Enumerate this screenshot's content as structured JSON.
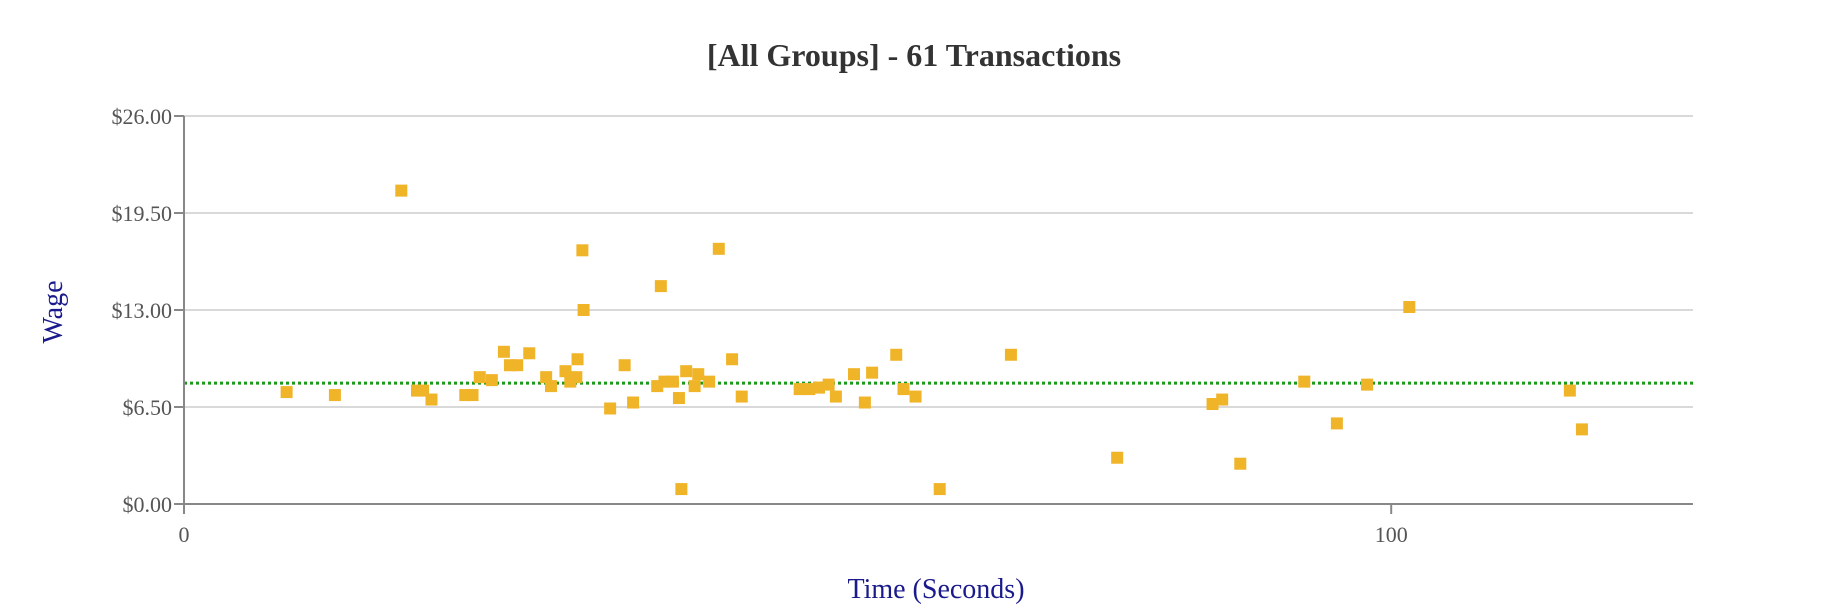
{
  "chart_data": {
    "type": "scatter",
    "title": "[All Groups] - 61 Transactions",
    "xlabel": "Time (Seconds)",
    "ylabel": "Wage",
    "xlim": [
      0,
      125
    ],
    "ylim": [
      0,
      26
    ],
    "x_ticks": [
      0,
      100
    ],
    "x_tick_labels": [
      "0",
      "100"
    ],
    "y_ticks": [
      0,
      6.5,
      13,
      19.5,
      26
    ],
    "y_tick_labels": [
      "$0.00",
      "$6.50",
      "$13.00",
      "$19.50",
      "$26.00"
    ],
    "grid": true,
    "reference_line": {
      "y": 8.1,
      "color": "#1a9a1a",
      "style": "dotted"
    },
    "colors": {
      "marker": "#f0b429",
      "axis_label": "#1a1a8c",
      "grid": "#d9d9d9"
    },
    "points": [
      {
        "x": 8.5,
        "y": 7.5
      },
      {
        "x": 12.5,
        "y": 7.3
      },
      {
        "x": 18.0,
        "y": 21.0
      },
      {
        "x": 19.3,
        "y": 7.6
      },
      {
        "x": 19.8,
        "y": 7.6
      },
      {
        "x": 20.5,
        "y": 7.0
      },
      {
        "x": 23.3,
        "y": 7.3
      },
      {
        "x": 23.9,
        "y": 7.3
      },
      {
        "x": 24.5,
        "y": 8.5
      },
      {
        "x": 25.5,
        "y": 8.3
      },
      {
        "x": 26.5,
        "y": 10.2
      },
      {
        "x": 27.0,
        "y": 9.3
      },
      {
        "x": 27.6,
        "y": 9.3
      },
      {
        "x": 28.6,
        "y": 10.1
      },
      {
        "x": 30.0,
        "y": 8.5
      },
      {
        "x": 30.4,
        "y": 7.9
      },
      {
        "x": 31.6,
        "y": 8.9
      },
      {
        "x": 32.0,
        "y": 8.2
      },
      {
        "x": 32.5,
        "y": 8.5
      },
      {
        "x": 32.6,
        "y": 9.7
      },
      {
        "x": 33.0,
        "y": 17.0
      },
      {
        "x": 33.1,
        "y": 13.0
      },
      {
        "x": 35.3,
        "y": 6.4
      },
      {
        "x": 36.5,
        "y": 9.3
      },
      {
        "x": 37.2,
        "y": 6.8
      },
      {
        "x": 39.2,
        "y": 7.9
      },
      {
        "x": 39.5,
        "y": 14.6
      },
      {
        "x": 39.8,
        "y": 8.2
      },
      {
        "x": 40.5,
        "y": 8.2
      },
      {
        "x": 41.0,
        "y": 7.1
      },
      {
        "x": 41.2,
        "y": 1.0
      },
      {
        "x": 41.6,
        "y": 8.9
      },
      {
        "x": 42.3,
        "y": 7.9
      },
      {
        "x": 42.6,
        "y": 8.7
      },
      {
        "x": 43.5,
        "y": 8.2
      },
      {
        "x": 44.3,
        "y": 17.1
      },
      {
        "x": 45.4,
        "y": 9.7
      },
      {
        "x": 46.2,
        "y": 7.2
      },
      {
        "x": 51.0,
        "y": 7.7
      },
      {
        "x": 51.8,
        "y": 7.7
      },
      {
        "x": 52.6,
        "y": 7.8
      },
      {
        "x": 53.4,
        "y": 8.0
      },
      {
        "x": 54.0,
        "y": 7.2
      },
      {
        "x": 55.5,
        "y": 8.7
      },
      {
        "x": 56.4,
        "y": 6.8
      },
      {
        "x": 57.0,
        "y": 8.8
      },
      {
        "x": 59.0,
        "y": 10.0
      },
      {
        "x": 59.6,
        "y": 7.7
      },
      {
        "x": 60.6,
        "y": 7.2
      },
      {
        "x": 62.6,
        "y": 1.0
      },
      {
        "x": 68.5,
        "y": 10.0
      },
      {
        "x": 77.3,
        "y": 3.1
      },
      {
        "x": 85.2,
        "y": 6.7
      },
      {
        "x": 86.0,
        "y": 7.0
      },
      {
        "x": 87.5,
        "y": 2.7
      },
      {
        "x": 92.8,
        "y": 8.2
      },
      {
        "x": 95.5,
        "y": 5.4
      },
      {
        "x": 98.0,
        "y": 8.0
      },
      {
        "x": 101.5,
        "y": 13.2
      },
      {
        "x": 114.8,
        "y": 7.6
      },
      {
        "x": 115.8,
        "y": 5.0
      }
    ]
  }
}
